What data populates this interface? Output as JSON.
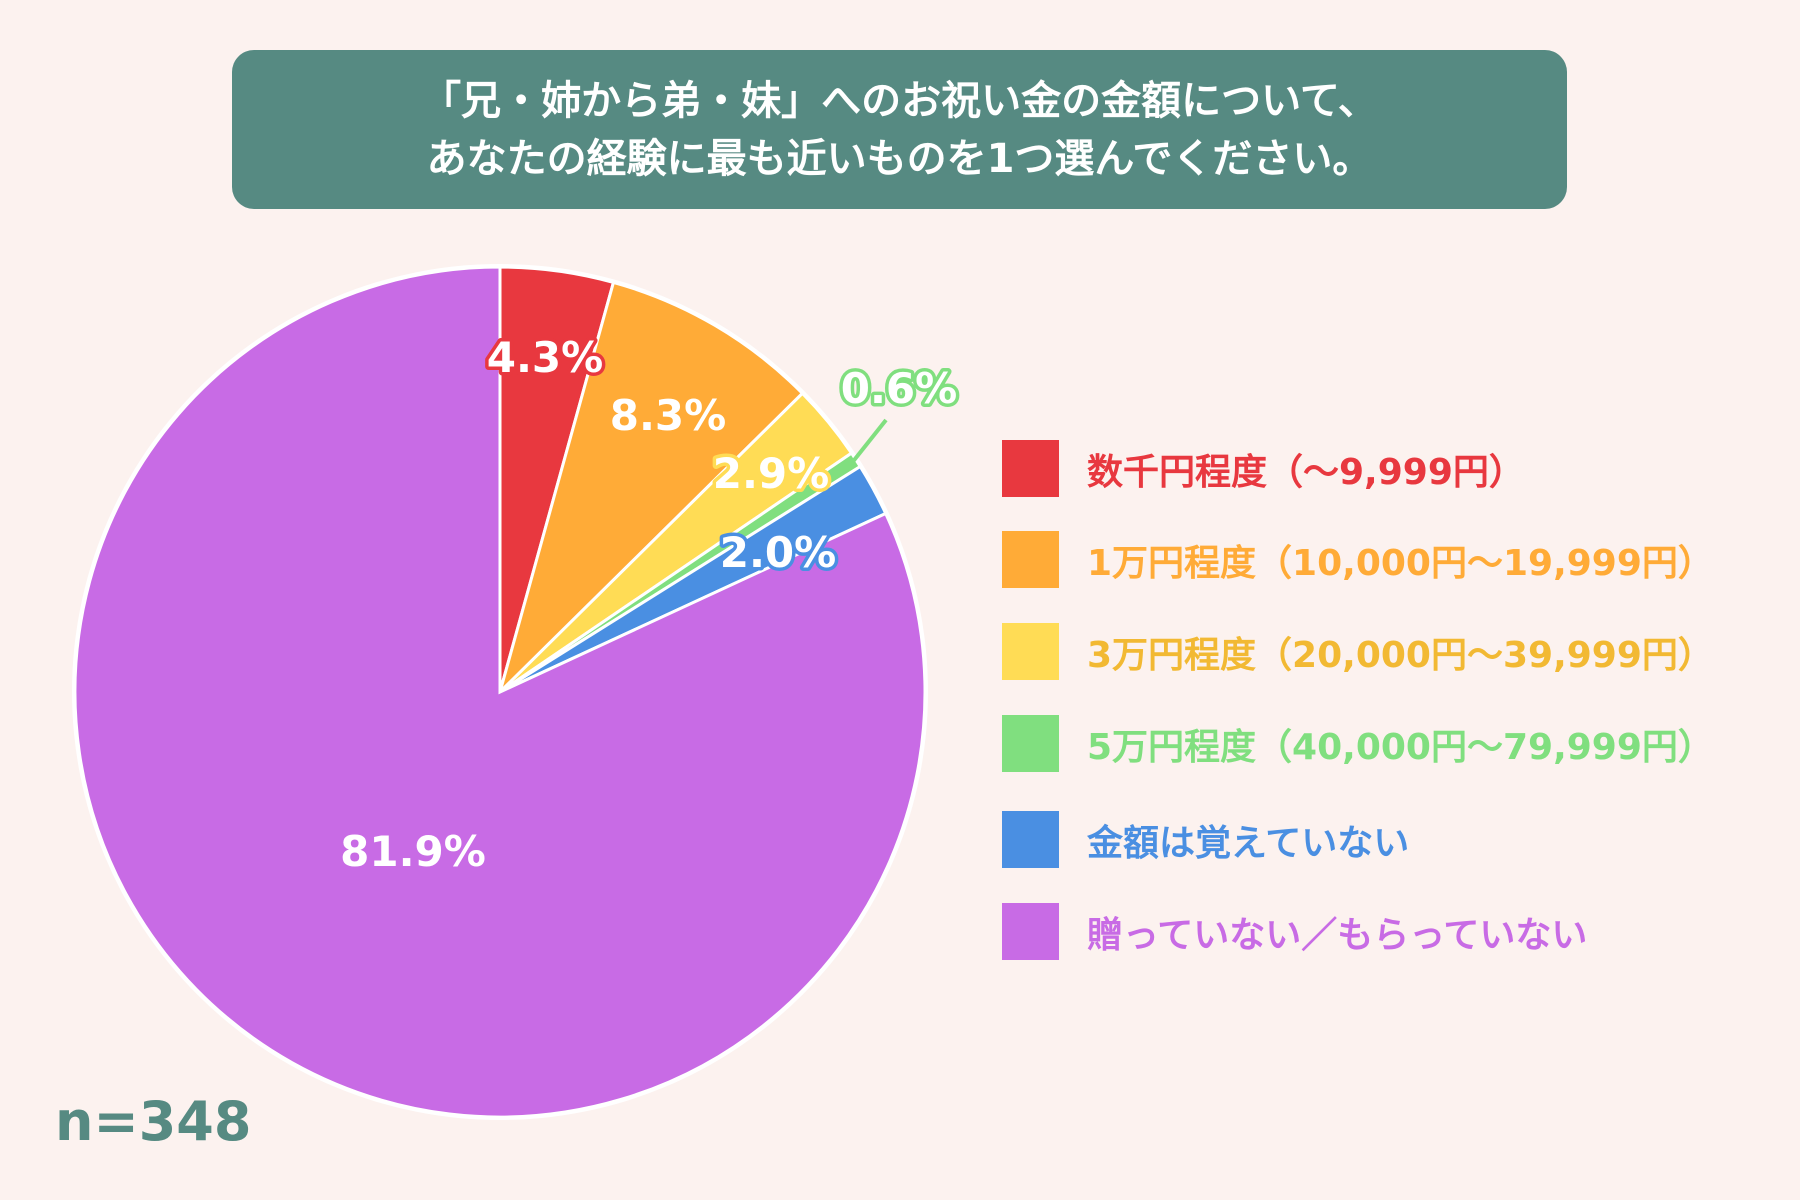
{
  "title": {
    "line1": "「兄・姉から弟・妹」へのお祝い金の金額について、",
    "line2": "あなたの経験に最も近いものを1つ選んでください。"
  },
  "sample_size": "n=348",
  "chart_data": {
    "type": "pie",
    "title": "「兄・姉から弟・妹」へのお祝い金の金額について、あなたの経験に最も近いものを1つ選んでください。",
    "unit": "%",
    "start_angle": "12 o'clock, clockwise",
    "legend_position": "right",
    "categories": [
      "数千円程度（～9,999円）",
      "1万円程度（10,000円～19,999円）",
      "3万円程度（20,000円～39,999円）",
      "5万円程度（40,000円～79,999円）",
      "金額は覚えていない",
      "贈っていない／もらっていない"
    ],
    "values": [
      4.3,
      8.3,
      2.9,
      0.6,
      2.0,
      81.9
    ],
    "labels": [
      "4.3%",
      "8.3%",
      "2.9%",
      "0.6%",
      "2.0%",
      "81.9%"
    ],
    "colors": [
      "#E8383F",
      "#FFAB37",
      "#FFDC55",
      "#80DF7F",
      "#4A8FE2",
      "#C86BE5"
    ],
    "legend_text_colors": [
      "#E8383F",
      "#FFAB37",
      "#F2B933",
      "#80DF7F",
      "#4A8FE2",
      "#C86BE5"
    ]
  }
}
